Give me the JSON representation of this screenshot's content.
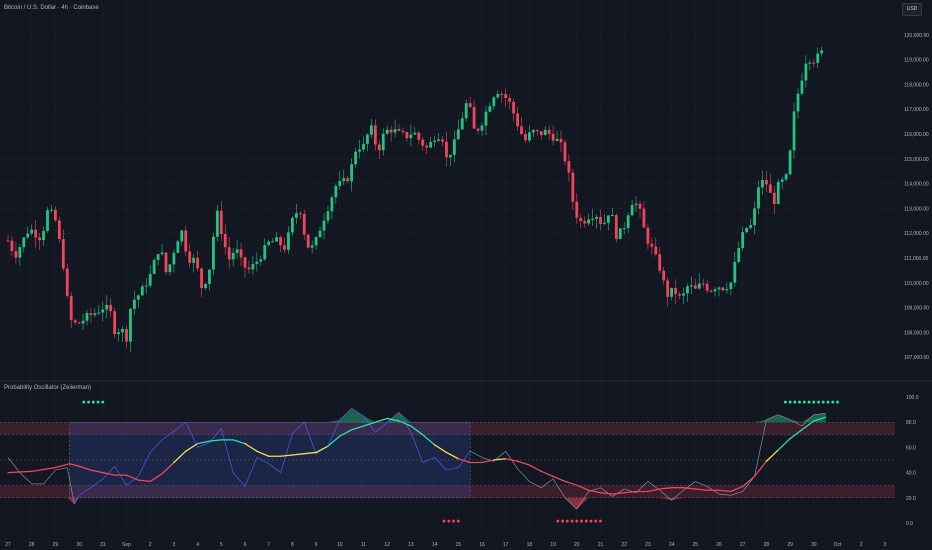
{
  "header": {
    "symbol_title": "Bitcoin / U.S. Dollar · 4h · Coinbase",
    "currency_button": "USD"
  },
  "indicator": {
    "title": "Probability Oscillator (Zeiierman)"
  },
  "colors": {
    "background": "#131722",
    "candle_up": "#26c281",
    "candle_down": "#f0455a",
    "grid": "#1e2230",
    "text": "#b2b5be",
    "blue_line": "#4f5cf0",
    "signal_red": "#f0455a",
    "signal_green": "#26e6a0",
    "signal_yellow": "#f5e04c"
  },
  "chart_data": [
    {
      "type": "candlestick",
      "title": "",
      "y_axis_ticks": [
        "120,000.00",
        "119,000.00",
        "118,000.00",
        "117,000.00",
        "116,000.00",
        "115,000.00",
        "114,000.00",
        "113,000.00",
        "112,000.00",
        "111,000.00",
        "110,000.00",
        "109,000.00",
        "108,000.00",
        "107,000.00"
      ],
      "ylim": [
        106400,
        120600
      ],
      "x_axis_ticks": [
        "27",
        "28",
        "29",
        "30",
        "31",
        "Sep",
        "2",
        "3",
        "4",
        "5",
        "6",
        "7",
        "8",
        "9",
        "10",
        "11",
        "12",
        "13",
        "14",
        "15",
        "16",
        "17",
        "18",
        "19",
        "20",
        "21",
        "22",
        "23",
        "24",
        "25",
        "26",
        "27",
        "28",
        "29",
        "30",
        "Oct",
        "2",
        "3"
      ],
      "path_close": [
        [
          0,
          111700
        ],
        [
          0.3,
          111100
        ],
        [
          0.9,
          112200
        ],
        [
          1.4,
          111800
        ],
        [
          1.7,
          113000
        ],
        [
          2.0,
          112500
        ],
        [
          2.3,
          111000
        ],
        [
          2.6,
          108500
        ],
        [
          2.9,
          108300
        ],
        [
          3.3,
          108600
        ],
        [
          3.7,
          108800
        ],
        [
          4.0,
          109000
        ],
        [
          4.3,
          108900
        ],
        [
          4.5,
          108100
        ],
        [
          4.8,
          108100
        ],
        [
          5.0,
          107800
        ],
        [
          5.2,
          109200
        ],
        [
          5.6,
          109600
        ],
        [
          6.0,
          110300
        ],
        [
          6.4,
          111500
        ],
        [
          6.7,
          110300
        ],
        [
          7.0,
          111300
        ],
        [
          7.3,
          112200
        ],
        [
          7.6,
          111000
        ],
        [
          7.9,
          110900
        ],
        [
          8.2,
          109700
        ],
        [
          8.5,
          110600
        ],
        [
          8.8,
          112900
        ],
        [
          9.1,
          111700
        ],
        [
          9.3,
          110900
        ],
        [
          9.6,
          111400
        ],
        [
          9.9,
          110700
        ],
        [
          10.2,
          110500
        ],
        [
          10.6,
          111000
        ],
        [
          11.0,
          111600
        ],
        [
          11.3,
          111700
        ],
        [
          11.7,
          111400
        ],
        [
          12.0,
          112500
        ],
        [
          12.3,
          113100
        ],
        [
          12.6,
          111500
        ],
        [
          12.9,
          111400
        ],
        [
          13.2,
          112300
        ],
        [
          13.6,
          113300
        ],
        [
          13.8,
          113900
        ],
        [
          14.1,
          114000
        ],
        [
          14.4,
          114300
        ],
        [
          14.7,
          115500
        ],
        [
          15.0,
          115500
        ],
        [
          15.3,
          116300
        ],
        [
          15.6,
          115300
        ],
        [
          15.9,
          116100
        ],
        [
          16.2,
          116200
        ],
        [
          16.5,
          116000
        ],
        [
          16.8,
          115900
        ],
        [
          17.1,
          116100
        ],
        [
          17.4,
          115700
        ],
        [
          17.7,
          115400
        ],
        [
          18.0,
          115900
        ],
        [
          18.3,
          116000
        ],
        [
          18.5,
          115000
        ],
        [
          18.8,
          115500
        ],
        [
          19.1,
          116500
        ],
        [
          19.4,
          117400
        ],
        [
          19.7,
          116000
        ],
        [
          20.0,
          116500
        ],
        [
          20.3,
          117200
        ],
        [
          20.6,
          117800
        ],
        [
          20.9,
          117600
        ],
        [
          21.2,
          117200
        ],
        [
          21.5,
          116400
        ],
        [
          21.8,
          115700
        ],
        [
          22.1,
          116100
        ],
        [
          22.4,
          116000
        ],
        [
          22.7,
          116100
        ],
        [
          23.0,
          115900
        ],
        [
          23.3,
          115600
        ],
        [
          23.6,
          114700
        ],
        [
          23.9,
          112900
        ],
        [
          24.2,
          112400
        ],
        [
          24.5,
          112700
        ],
        [
          24.8,
          112800
        ],
        [
          25.1,
          112300
        ],
        [
          25.4,
          113000
        ],
        [
          25.7,
          111800
        ],
        [
          26.0,
          112300
        ],
        [
          26.3,
          113300
        ],
        [
          26.6,
          113100
        ],
        [
          26.9,
          111900
        ],
        [
          27.2,
          111300
        ],
        [
          27.5,
          110600
        ],
        [
          27.8,
          109500
        ],
        [
          28.1,
          109700
        ],
        [
          28.4,
          109300
        ],
        [
          28.7,
          109900
        ],
        [
          29.0,
          109700
        ],
        [
          29.3,
          110000
        ],
        [
          29.6,
          109700
        ],
        [
          29.9,
          109900
        ],
        [
          30.2,
          109800
        ],
        [
          30.5,
          110000
        ],
        [
          30.8,
          111300
        ],
        [
          31.1,
          112200
        ],
        [
          31.4,
          112300
        ],
        [
          31.7,
          114100
        ],
        [
          32.0,
          114000
        ],
        [
          32.3,
          113200
        ],
        [
          32.5,
          113900
        ],
        [
          32.7,
          114100
        ],
        [
          32.9,
          114300
        ],
        [
          33.2,
          117100
        ],
        [
          33.5,
          118300
        ],
        [
          33.7,
          119100
        ],
        [
          34.0,
          119000
        ],
        [
          34.3,
          119200
        ],
        [
          34.5,
          119700
        ]
      ]
    },
    {
      "type": "line",
      "title": "Probability Oscillator (Zeiierman)",
      "y_axis_ticks": [
        "100.0",
        "80.0",
        "60.0",
        "40.0",
        "20.0",
        "0.0"
      ],
      "ylim": [
        -4,
        104
      ],
      "bands": {
        "upper": [
          70,
          80
        ],
        "mid": 50,
        "lower": [
          20,
          30
        ]
      },
      "signal_line": [
        [
          0,
          40
        ],
        [
          1,
          41
        ],
        [
          2,
          44
        ],
        [
          2.6,
          47
        ],
        [
          3,
          45
        ],
        [
          3.5,
          42
        ],
        [
          4,
          40
        ],
        [
          4.5,
          38
        ],
        [
          5,
          38
        ],
        [
          5.5,
          34
        ],
        [
          6,
          33
        ],
        [
          6.5,
          39
        ],
        [
          7,
          48
        ],
        [
          7.5,
          57
        ],
        [
          8,
          63
        ],
        [
          8.5,
          65
        ],
        [
          9,
          66
        ],
        [
          9.5,
          66
        ],
        [
          10,
          63
        ],
        [
          10.5,
          57
        ],
        [
          11,
          53
        ],
        [
          11.5,
          53
        ],
        [
          12,
          54
        ],
        [
          12.5,
          55
        ],
        [
          13,
          56
        ],
        [
          13.5,
          61
        ],
        [
          14,
          69
        ],
        [
          14.5,
          74
        ],
        [
          15,
          77
        ],
        [
          15.5,
          80
        ],
        [
          16,
          83
        ],
        [
          16.5,
          81
        ],
        [
          17,
          77
        ],
        [
          17.5,
          70
        ],
        [
          18,
          62
        ],
        [
          18.5,
          56
        ],
        [
          19,
          51
        ],
        [
          19.5,
          48
        ],
        [
          20,
          48
        ],
        [
          20.5,
          50
        ],
        [
          21,
          51
        ],
        [
          21.5,
          49
        ],
        [
          22,
          46
        ],
        [
          22.5,
          41
        ],
        [
          23,
          37
        ],
        [
          23.5,
          33
        ],
        [
          24,
          30
        ],
        [
          24.5,
          26
        ],
        [
          25,
          24
        ],
        [
          25.5,
          23
        ],
        [
          26,
          24
        ],
        [
          26.5,
          25
        ],
        [
          27,
          25
        ],
        [
          27.5,
          27
        ],
        [
          28,
          28
        ],
        [
          28.5,
          28
        ],
        [
          29,
          27
        ],
        [
          29.5,
          26
        ],
        [
          30,
          26
        ],
        [
          30.5,
          25
        ],
        [
          31,
          29
        ],
        [
          31.5,
          37
        ],
        [
          32,
          49
        ],
        [
          32.5,
          58
        ],
        [
          33,
          67
        ],
        [
          33.5,
          74
        ],
        [
          34,
          81
        ],
        [
          34.5,
          84
        ]
      ],
      "prob_line": [
        [
          0,
          52
        ],
        [
          0.5,
          40
        ],
        [
          1,
          31
        ],
        [
          1.5,
          31
        ],
        [
          2,
          42
        ],
        [
          2.5,
          44
        ],
        [
          2.8,
          15
        ],
        [
          3,
          22
        ],
        [
          3.5,
          28
        ],
        [
          4,
          35
        ],
        [
          4.5,
          45
        ],
        [
          5,
          30
        ],
        [
          5.5,
          37
        ],
        [
          6,
          56
        ],
        [
          6.5,
          66
        ],
        [
          7,
          73
        ],
        [
          7.5,
          80
        ],
        [
          8,
          60
        ],
        [
          8.5,
          64
        ],
        [
          9,
          75
        ],
        [
          9.5,
          40
        ],
        [
          10,
          29
        ],
        [
          10.5,
          52
        ],
        [
          11,
          47
        ],
        [
          11.5,
          40
        ],
        [
          12,
          71
        ],
        [
          12.5,
          80
        ],
        [
          13,
          55
        ],
        [
          13.5,
          61
        ],
        [
          14,
          82
        ],
        [
          14.5,
          91
        ],
        [
          15,
          85
        ],
        [
          15.5,
          72
        ],
        [
          16,
          80
        ],
        [
          16.5,
          88
        ],
        [
          17,
          72
        ],
        [
          17.5,
          48
        ],
        [
          18,
          52
        ],
        [
          18.5,
          42
        ],
        [
          19,
          44
        ],
        [
          19.5,
          57
        ],
        [
          20,
          52
        ],
        [
          20.5,
          49
        ],
        [
          21,
          57
        ],
        [
          21.5,
          43
        ],
        [
          22,
          33
        ],
        [
          22.5,
          28
        ],
        [
          23,
          35
        ],
        [
          23.5,
          20
        ],
        [
          24,
          11
        ],
        [
          24.5,
          25
        ],
        [
          25,
          28
        ],
        [
          25.5,
          21
        ],
        [
          26,
          27
        ],
        [
          26.5,
          24
        ],
        [
          27,
          33
        ],
        [
          27.5,
          26
        ],
        [
          28,
          18
        ],
        [
          28.5,
          26
        ],
        [
          29,
          33
        ],
        [
          29.5,
          29
        ],
        [
          30,
          23
        ],
        [
          30.5,
          22
        ],
        [
          31,
          25
        ],
        [
          31.5,
          37
        ],
        [
          32,
          82
        ],
        [
          32.5,
          86
        ],
        [
          33,
          82
        ],
        [
          33.5,
          77
        ],
        [
          34,
          86
        ],
        [
          34.5,
          87
        ]
      ],
      "overbought_dots": [
        [
          3.2,
          96
        ],
        [
          3.4,
          96
        ],
        [
          3.6,
          96
        ],
        [
          3.8,
          96
        ],
        [
          4.0,
          96
        ],
        [
          32.8,
          96
        ],
        [
          33.0,
          96
        ],
        [
          33.2,
          96
        ],
        [
          33.4,
          96
        ],
        [
          33.6,
          96
        ],
        [
          33.8,
          96
        ],
        [
          34.0,
          96
        ],
        [
          34.2,
          96
        ],
        [
          34.4,
          96
        ],
        [
          34.6,
          96
        ],
        [
          34.8,
          96
        ],
        [
          35.0,
          96
        ]
      ],
      "oversold_dots": [
        [
          18.4,
          1.5
        ],
        [
          18.6,
          1.5
        ],
        [
          18.8,
          1.5
        ],
        [
          19.0,
          1.5
        ],
        [
          23.2,
          1.5
        ],
        [
          23.4,
          1.5
        ],
        [
          23.6,
          1.5
        ],
        [
          23.8,
          1.5
        ],
        [
          24.0,
          1.5
        ],
        [
          24.2,
          1.5
        ],
        [
          24.4,
          1.5
        ],
        [
          24.6,
          1.5
        ],
        [
          24.8,
          1.5
        ],
        [
          25.0,
          1.5
        ]
      ],
      "range_box": {
        "x": [
          2.6,
          19.5
        ],
        "y": [
          20,
          80
        ]
      }
    }
  ]
}
